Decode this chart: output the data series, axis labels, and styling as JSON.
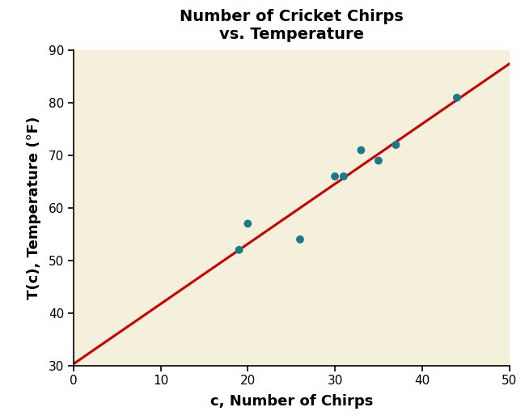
{
  "title_line1": "Number of Cricket Chirps",
  "title_line2": "vs. Temperature",
  "xlabel": "c, Number of Chirps",
  "ylabel": "T(c), Temperature (°F)",
  "scatter_x": [
    19,
    20,
    26,
    30,
    31,
    33,
    35,
    37,
    44
  ],
  "scatter_y": [
    52,
    57,
    54,
    66,
    66,
    71,
    69,
    72,
    81
  ],
  "scatter_color": "#1a7a8a",
  "scatter_size": 50,
  "line_intercept": 30.281,
  "line_slope": 1.143,
  "line_color": "#cc0000",
  "line_width": 2.2,
  "xlim": [
    0,
    50
  ],
  "ylim": [
    30,
    90
  ],
  "xticks": [
    0,
    10,
    20,
    30,
    40,
    50
  ],
  "yticks": [
    30,
    40,
    50,
    60,
    70,
    80,
    90
  ],
  "plot_bg_color": "#f5f0dc",
  "fig_bg_color": "#ffffff",
  "title_fontsize": 14,
  "label_fontsize": 13,
  "tick_labelsize": 11
}
